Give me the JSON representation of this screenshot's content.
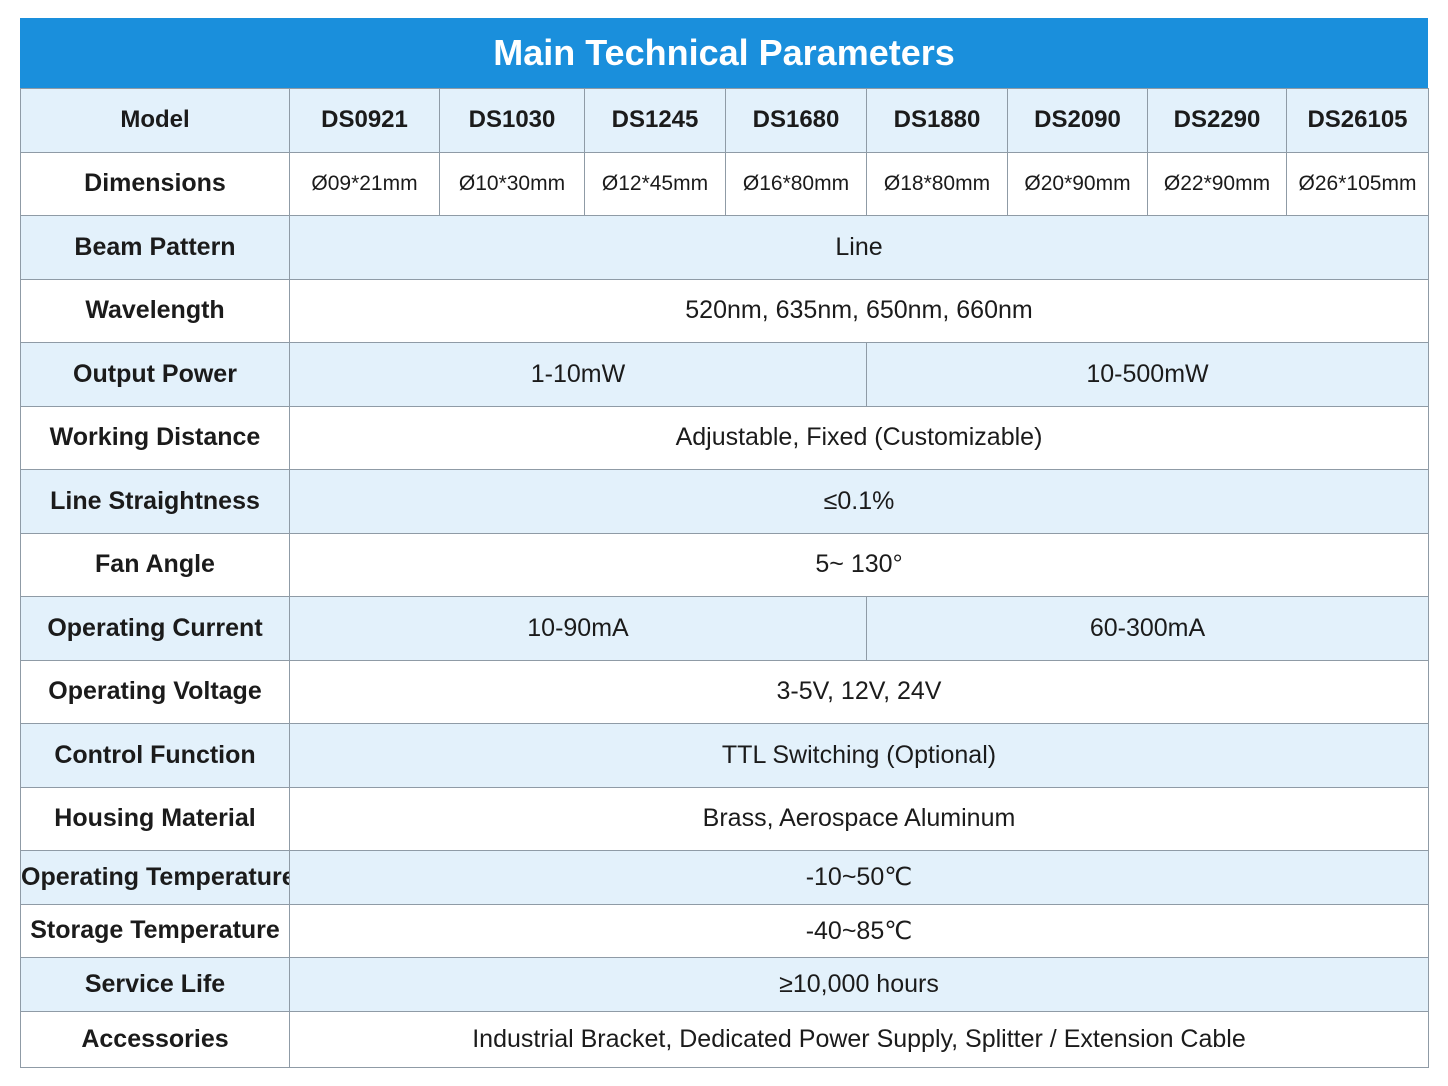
{
  "title": "Main Technical Parameters",
  "colors": {
    "header_blue": "#1a8fdc",
    "row_light_blue": "#e3f1fb",
    "row_white": "#ffffff",
    "grid_line": "#8f9ba6"
  },
  "models": {
    "label": "Model",
    "items": [
      "DS0921",
      "DS1030",
      "DS1245",
      "DS1680",
      "DS1880",
      "DS2090",
      "DS2290",
      "DS26105"
    ]
  },
  "dimensions": {
    "label": "Dimensions",
    "items": [
      "Ø09*21mm",
      "Ø10*30mm",
      "Ø12*45mm",
      "Ø16*80mm",
      "Ø18*80mm",
      "Ø20*90mm",
      "Ø22*90mm",
      "Ø26*105mm"
    ]
  },
  "beam_pattern": {
    "label": "Beam Pattern",
    "value": "Line"
  },
  "wavelength": {
    "label": "Wavelength",
    "value": "520nm,  635nm,  650nm,  660nm"
  },
  "output_power": {
    "label": "Output Power",
    "low": "1-10mW",
    "high": "10-500mW"
  },
  "working_distance": {
    "label": "Working Distance",
    "value": "Adjustable, Fixed (Customizable)"
  },
  "line_straightness": {
    "label": "Line Straightness",
    "value": "≤0.1%"
  },
  "fan_angle": {
    "label": "Fan Angle",
    "value": "5~ 130°"
  },
  "operating_current": {
    "label": "Operating Current",
    "low": "10-90mA",
    "high": "60-300mA"
  },
  "operating_voltage": {
    "label": "Operating Voltage",
    "value": "3-5V,  12V,  24V"
  },
  "control_function": {
    "label": "Control Function",
    "value": "TTL Switching (Optional)"
  },
  "housing_material": {
    "label": "Housing Material",
    "value": "Brass, Aerospace Aluminum"
  },
  "operating_temperature": {
    "label": "Operating Temperature",
    "value": "-10~50℃"
  },
  "storage_temperature": {
    "label": "Storage Temperature",
    "value": "-40~85℃"
  },
  "service_life": {
    "label": "Service Life",
    "value": "≥10,000 hours"
  },
  "accessories": {
    "label": "Accessories",
    "value": "Industrial Bracket, Dedicated Power Supply, Splitter / Extension Cable"
  }
}
